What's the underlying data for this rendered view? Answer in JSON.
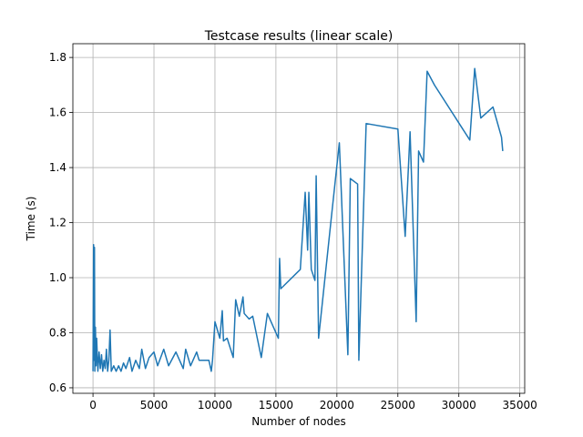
{
  "chart_data": {
    "type": "line",
    "title": "Testcase results (linear scale)",
    "xlabel": "Number of nodes",
    "ylabel": "Time (s)",
    "xlim": [
      -1650,
      35400
    ],
    "ylim": [
      0.58,
      1.85
    ],
    "xticks": [
      0,
      5000,
      10000,
      15000,
      20000,
      25000,
      30000,
      35000
    ],
    "yticks": [
      0.6,
      0.8,
      {
        "value": 1,
        "label": "1.0"
      },
      1.2,
      1.4,
      1.6,
      1.8
    ],
    "grid": true,
    "color": "#1f77b4",
    "x": [
      0,
      50,
      100,
      120,
      150,
      200,
      250,
      300,
      400,
      500,
      600,
      700,
      800,
      900,
      1000,
      1100,
      1200,
      1300,
      1400,
      1500,
      1700,
      1900,
      2100,
      2300,
      2500,
      2700,
      3000,
      3200,
      3500,
      3800,
      4000,
      4300,
      4600,
      5000,
      5300,
      5800,
      6200,
      6800,
      7400,
      7600,
      8000,
      8500,
      8700,
      9500,
      9700,
      9800,
      10000,
      10400,
      10600,
      10700,
      11000,
      11500,
      11700,
      12000,
      12300,
      12400,
      12800,
      13100,
      13800,
      14300,
      15200,
      15300,
      15400,
      17000,
      17400,
      17600,
      17700,
      17900,
      18200,
      18300,
      18500,
      19500,
      20200,
      20900,
      21100,
      21700,
      21800,
      22400,
      25000,
      25600,
      26000,
      26500,
      26700,
      27100,
      27400,
      28000,
      30900,
      31300,
      31800,
      32800,
      33500,
      33600
    ],
    "values": [
      0.66,
      1.12,
      0.7,
      1.11,
      0.66,
      0.82,
      0.68,
      0.78,
      0.66,
      0.73,
      0.67,
      0.72,
      0.66,
      0.7,
      0.67,
      0.74,
      0.66,
      0.7,
      0.81,
      0.66,
      0.68,
      0.66,
      0.68,
      0.66,
      0.69,
      0.67,
      0.71,
      0.66,
      0.7,
      0.67,
      0.74,
      0.67,
      0.71,
      0.73,
      0.68,
      0.74,
      0.68,
      0.73,
      0.67,
      0.74,
      0.68,
      0.73,
      0.7,
      0.7,
      0.66,
      0.7,
      0.84,
      0.78,
      0.88,
      0.77,
      0.78,
      0.71,
      0.92,
      0.86,
      0.93,
      0.87,
      0.85,
      0.86,
      0.71,
      0.87,
      0.78,
      1.07,
      0.96,
      1.03,
      1.31,
      1.1,
      1.31,
      1.03,
      0.99,
      1.37,
      0.78,
      1.2,
      1.49,
      0.72,
      1.36,
      1.34,
      0.7,
      1.56,
      1.54,
      1.15,
      1.53,
      0.84,
      1.46,
      1.42,
      1.75,
      1.7,
      1.5,
      1.76,
      1.58,
      1.62,
      1.51,
      1.46
    ]
  }
}
